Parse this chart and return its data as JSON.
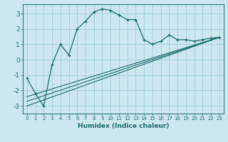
{
  "xlabel": "Humidex (Indice chaleur)",
  "bg_color": "#cce8ee",
  "grid_color": "#9dcdd8",
  "line_color": "#1a6b6b",
  "xlim": [
    -0.5,
    23.5
  ],
  "ylim": [
    -3.5,
    3.6
  ],
  "xticks": [
    0,
    1,
    2,
    3,
    4,
    5,
    6,
    7,
    8,
    9,
    10,
    11,
    12,
    13,
    14,
    15,
    16,
    17,
    18,
    19,
    20,
    21,
    22,
    23
  ],
  "yticks": [
    -3,
    -2,
    -1,
    0,
    1,
    2,
    3
  ],
  "main_x": [
    0,
    1,
    2,
    3,
    4,
    5,
    6,
    7,
    8,
    9,
    10,
    11,
    12,
    13,
    14,
    15,
    16,
    17,
    18,
    19,
    20,
    21,
    22,
    23
  ],
  "main_y": [
    -1.2,
    -2.2,
    -3.0,
    -0.3,
    1.0,
    0.3,
    2.0,
    2.5,
    3.1,
    3.3,
    3.2,
    2.9,
    2.6,
    2.6,
    1.3,
    1.0,
    1.2,
    1.6,
    1.3,
    1.3,
    1.2,
    1.3,
    1.4,
    1.45
  ],
  "line1_x": [
    0,
    23
  ],
  "line1_y": [
    -3.0,
    1.45
  ],
  "line2_x": [
    0,
    23
  ],
  "line2_y": [
    -2.7,
    1.45
  ],
  "line3_x": [
    0,
    23
  ],
  "line3_y": [
    -2.4,
    1.45
  ]
}
